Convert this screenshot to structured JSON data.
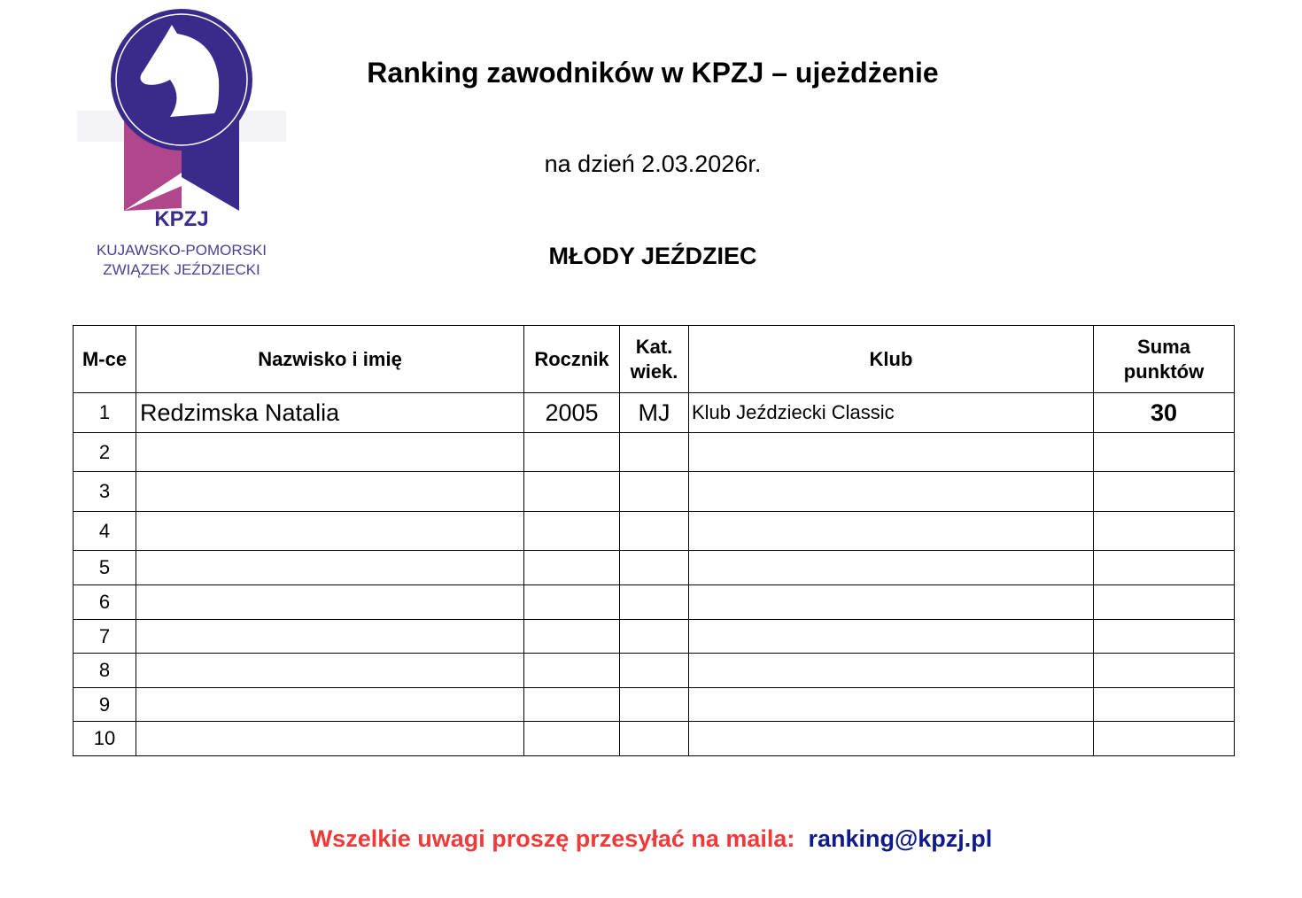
{
  "logo": {
    "abbr": "KPZJ",
    "line1": "KUJAWSKO-POMORSKI",
    "line2": "ZWIĄZEK JEŹDZIECKI",
    "colors": {
      "navy": "#3a2a8c",
      "pink": "#b0468c"
    }
  },
  "header": {
    "title": "Ranking zawodników w KPZJ – ujeżdżenie",
    "date": "na dzień 2.03.2026r.",
    "category": "MŁODY JEŹDZIEC"
  },
  "table": {
    "columns": [
      "M-ce",
      "Nazwisko i imię",
      "Rocznik",
      "Kat. wiek.",
      "Klub",
      "Suma punktów"
    ],
    "rows": [
      {
        "place": "1",
        "name": "Redzimska Natalia",
        "year": "2005",
        "cat": "MJ",
        "club": "Klub Jeździecki Classic",
        "points": "30"
      },
      {
        "place": "2",
        "name": "",
        "year": "",
        "cat": "",
        "club": "",
        "points": ""
      },
      {
        "place": "3",
        "name": "",
        "year": "",
        "cat": "",
        "club": "",
        "points": ""
      },
      {
        "place": "4",
        "name": "",
        "year": "",
        "cat": "",
        "club": "",
        "points": ""
      },
      {
        "place": "5",
        "name": "",
        "year": "",
        "cat": "",
        "club": "",
        "points": ""
      },
      {
        "place": "6",
        "name": "",
        "year": "",
        "cat": "",
        "club": "",
        "points": ""
      },
      {
        "place": "7",
        "name": "",
        "year": "",
        "cat": "",
        "club": "",
        "points": ""
      },
      {
        "place": "8",
        "name": "",
        "year": "",
        "cat": "",
        "club": "",
        "points": ""
      },
      {
        "place": "9",
        "name": "",
        "year": "",
        "cat": "",
        "club": "",
        "points": ""
      },
      {
        "place": "10",
        "name": "",
        "year": "",
        "cat": "",
        "club": "",
        "points": ""
      }
    ]
  },
  "footer": {
    "note": "Wszelkie uwagi proszę przesyłać na maila:",
    "email": "ranking@kpzj.pl",
    "colors": {
      "note": "#f03a3a",
      "email": "#0f1a8c"
    }
  }
}
